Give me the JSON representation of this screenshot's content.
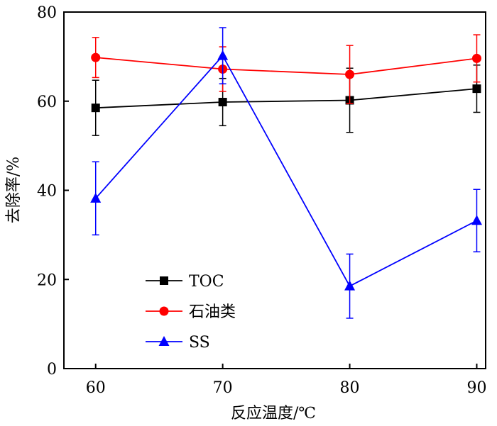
{
  "chart_data": {
    "type": "line",
    "xlabel": "反应温度/℃",
    "ylabel": "去除率/%",
    "x": [
      60,
      70,
      80,
      90
    ],
    "xticks": [
      60,
      70,
      80,
      90
    ],
    "yticks": [
      0,
      20,
      40,
      60,
      80
    ],
    "xlim": [
      57.5,
      90.7
    ],
    "ylim": [
      0,
      80
    ],
    "grid": false,
    "legend_position": "bottom-left",
    "series": [
      {
        "name": "TOC",
        "color": "#000000",
        "marker": "square",
        "values": [
          58.5,
          59.8,
          60.2,
          62.8
        ],
        "errors": [
          6.2,
          5.3,
          7.2,
          5.3
        ]
      },
      {
        "name": "石油类",
        "color": "#ff0000",
        "marker": "circle",
        "values": [
          69.8,
          67.2,
          66.0,
          69.6
        ],
        "errors": [
          4.5,
          5.0,
          6.5,
          5.3
        ]
      },
      {
        "name": "SS",
        "color": "#0000ff",
        "marker": "triangle",
        "values": [
          38.2,
          70.2,
          18.5,
          33.2
        ],
        "errors": [
          8.2,
          6.3,
          7.2,
          7.0
        ]
      }
    ]
  }
}
